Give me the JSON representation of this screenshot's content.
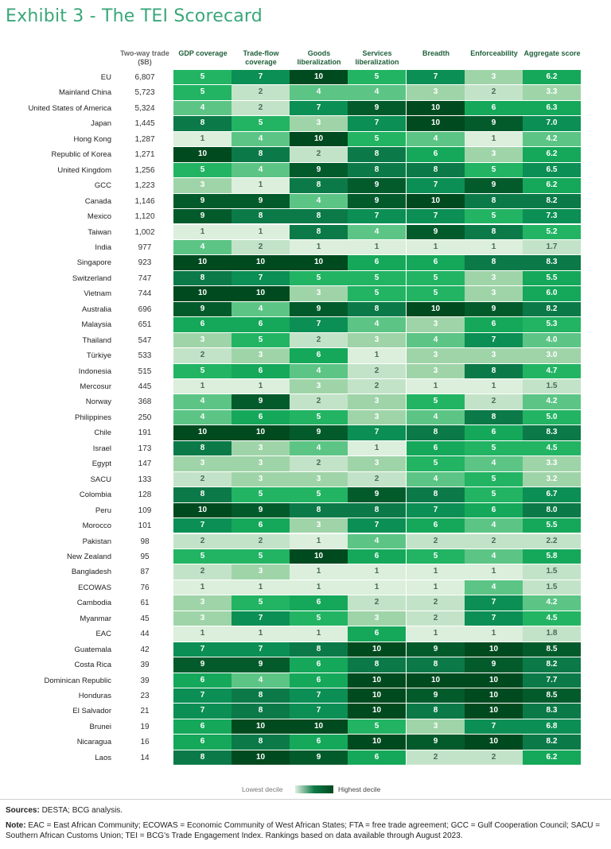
{
  "title": "Exhibit 3 - The TEI Scorecard",
  "columns": {
    "trade": "Two-way trade ($B)",
    "headers": [
      "GDP coverage",
      "Trade-flow coverage",
      "Goods liberalization",
      "Services liberalization",
      "Breadth",
      "Enforceability",
      "Aggregate score"
    ]
  },
  "legend": {
    "low": "Lowest decile",
    "high": "Highest decile"
  },
  "footer": {
    "sources_label": "Sources:",
    "sources_text": "DESTA; BCG analysis.",
    "note_label": "Note:",
    "note_text": "EAC = East African Community; ECOWAS = Economic Community of West African States; FTA = free trade agreement; GCC = Gulf Cooperation Council; SACU = Southern African Customs Union; TEI = BCG's Trade Engagement Index. Rankings based on data available through August 2023."
  },
  "chart_data": {
    "type": "heatmap",
    "title": "Exhibit 3 - The TEI Scorecard",
    "columns": [
      "GDP coverage",
      "Trade-flow coverage",
      "Goods liberalization",
      "Services liberalization",
      "Breadth",
      "Enforceability",
      "Aggregate score"
    ],
    "colors": [
      "#dbefdc",
      "#c3e3c8",
      "#9fd4a8",
      "#5cc585",
      "#22b463",
      "#15a85a",
      "#0b8f54",
      "#0b7a48",
      "#035b2c",
      "#004a1f"
    ],
    "rows": [
      {
        "country": "EU",
        "trade": "6,807",
        "scores": [
          5,
          7,
          10,
          5,
          7,
          3
        ],
        "aggregate": 6.2
      },
      {
        "country": "Mainland China",
        "trade": "5,723",
        "scores": [
          5,
          2,
          4,
          4,
          3,
          2
        ],
        "aggregate": 3.3
      },
      {
        "country": "United States of America",
        "trade": "5,324",
        "scores": [
          4,
          2,
          7,
          9,
          10,
          6
        ],
        "aggregate": 6.3
      },
      {
        "country": "Japan",
        "trade": "1,445",
        "scores": [
          8,
          5,
          3,
          7,
          10,
          9
        ],
        "aggregate": 7.0
      },
      {
        "country": "Hong Kong",
        "trade": "1,287",
        "scores": [
          1,
          4,
          10,
          5,
          4,
          1
        ],
        "aggregate": 4.2
      },
      {
        "country": "Republic of Korea",
        "trade": "1,271",
        "scores": [
          10,
          8,
          2,
          8,
          6,
          3
        ],
        "aggregate": 6.2
      },
      {
        "country": "United Kingdom",
        "trade": "1,256",
        "scores": [
          5,
          4,
          9,
          8,
          8,
          5
        ],
        "aggregate": 6.5
      },
      {
        "country": "GCC",
        "trade": "1,223",
        "scores": [
          3,
          1,
          8,
          9,
          7,
          9
        ],
        "aggregate": 6.2
      },
      {
        "country": "Canada",
        "trade": "1,146",
        "scores": [
          9,
          9,
          4,
          9,
          10,
          8
        ],
        "aggregate": 8.2
      },
      {
        "country": "Mexico",
        "trade": "1,120",
        "scores": [
          9,
          8,
          8,
          7,
          7,
          5
        ],
        "aggregate": 7.3
      },
      {
        "country": "Taiwan",
        "trade": "1,002",
        "scores": [
          1,
          1,
          8,
          4,
          9,
          8
        ],
        "aggregate": 5.2
      },
      {
        "country": "India",
        "trade": "977",
        "scores": [
          4,
          2,
          1,
          1,
          1,
          1
        ],
        "aggregate": 1.7
      },
      {
        "country": "Singapore",
        "trade": "923",
        "scores": [
          10,
          10,
          10,
          6,
          6,
          8
        ],
        "aggregate": 8.3
      },
      {
        "country": "Switzerland",
        "trade": "747",
        "scores": [
          8,
          7,
          5,
          5,
          5,
          3
        ],
        "aggregate": 5.5
      },
      {
        "country": "Vietnam",
        "trade": "744",
        "scores": [
          10,
          10,
          3,
          5,
          5,
          3
        ],
        "aggregate": 6.0
      },
      {
        "country": "Australia",
        "trade": "696",
        "scores": [
          9,
          4,
          9,
          8,
          10,
          9
        ],
        "aggregate": 8.2
      },
      {
        "country": "Malaysia",
        "trade": "651",
        "scores": [
          6,
          6,
          7,
          4,
          3,
          6
        ],
        "aggregate": 5.3
      },
      {
        "country": "Thailand",
        "trade": "547",
        "scores": [
          3,
          5,
          2,
          3,
          4,
          7
        ],
        "aggregate": 4.0
      },
      {
        "country": "Türkiye",
        "trade": "533",
        "scores": [
          2,
          3,
          6,
          1,
          3,
          3
        ],
        "aggregate": 3.0
      },
      {
        "country": "Indonesia",
        "trade": "515",
        "scores": [
          5,
          6,
          4,
          2,
          3,
          8
        ],
        "aggregate": 4.7
      },
      {
        "country": "Mercosur",
        "trade": "445",
        "scores": [
          1,
          1,
          3,
          2,
          1,
          1
        ],
        "aggregate": 1.5
      },
      {
        "country": "Norway",
        "trade": "368",
        "scores": [
          4,
          9,
          2,
          3,
          5,
          2
        ],
        "aggregate": 4.2
      },
      {
        "country": "Philippines",
        "trade": "250",
        "scores": [
          4,
          6,
          5,
          3,
          4,
          8
        ],
        "aggregate": 5.0
      },
      {
        "country": "Chile",
        "trade": "191",
        "scores": [
          10,
          10,
          9,
          7,
          8,
          6
        ],
        "aggregate": 8.3
      },
      {
        "country": "Israel",
        "trade": "173",
        "scores": [
          8,
          3,
          4,
          1,
          6,
          5
        ],
        "aggregate": 4.5
      },
      {
        "country": "Egypt",
        "trade": "147",
        "scores": [
          3,
          3,
          2,
          3,
          5,
          4
        ],
        "aggregate": 3.3
      },
      {
        "country": "SACU",
        "trade": "133",
        "scores": [
          2,
          3,
          3,
          2,
          4,
          5
        ],
        "aggregate": 3.2
      },
      {
        "country": "Colombia",
        "trade": "128",
        "scores": [
          8,
          5,
          5,
          9,
          8,
          5
        ],
        "aggregate": 6.7
      },
      {
        "country": "Peru",
        "trade": "109",
        "scores": [
          10,
          9,
          8,
          8,
          7,
          6
        ],
        "aggregate": 8.0
      },
      {
        "country": "Morocco",
        "trade": "101",
        "scores": [
          7,
          6,
          3,
          7,
          6,
          4
        ],
        "aggregate": 5.5
      },
      {
        "country": "Pakistan",
        "trade": "98",
        "scores": [
          2,
          2,
          1,
          4,
          2,
          2
        ],
        "aggregate": 2.2
      },
      {
        "country": "New Zealand",
        "trade": "95",
        "scores": [
          5,
          5,
          10,
          6,
          5,
          4
        ],
        "aggregate": 5.8
      },
      {
        "country": "Bangladesh",
        "trade": "87",
        "scores": [
          2,
          3,
          1,
          1,
          1,
          1
        ],
        "aggregate": 1.5
      },
      {
        "country": "ECOWAS",
        "trade": "76",
        "scores": [
          1,
          1,
          1,
          1,
          1,
          4
        ],
        "aggregate": 1.5
      },
      {
        "country": "Cambodia",
        "trade": "61",
        "scores": [
          3,
          5,
          6,
          2,
          2,
          7
        ],
        "aggregate": 4.2
      },
      {
        "country": "Myanmar",
        "trade": "45",
        "scores": [
          3,
          7,
          5,
          3,
          2,
          7
        ],
        "aggregate": 4.5
      },
      {
        "country": "EAC",
        "trade": "44",
        "scores": [
          1,
          1,
          1,
          6,
          1,
          1
        ],
        "aggregate": 1.8
      },
      {
        "country": "Guatemala",
        "trade": "42",
        "scores": [
          7,
          7,
          8,
          10,
          9,
          10
        ],
        "aggregate": 8.5
      },
      {
        "country": "Costa Rica",
        "trade": "39",
        "scores": [
          9,
          9,
          6,
          8,
          8,
          9
        ],
        "aggregate": 8.2
      },
      {
        "country": "Dominican Republic",
        "trade": "39",
        "scores": [
          6,
          4,
          6,
          10,
          10,
          10
        ],
        "aggregate": 7.7
      },
      {
        "country": "Honduras",
        "trade": "23",
        "scores": [
          7,
          8,
          7,
          10,
          9,
          10
        ],
        "aggregate": 8.5
      },
      {
        "country": "El Salvador",
        "trade": "21",
        "scores": [
          7,
          8,
          7,
          10,
          8,
          10
        ],
        "aggregate": 8.3
      },
      {
        "country": "Brunei",
        "trade": "19",
        "scores": [
          6,
          10,
          10,
          5,
          3,
          7
        ],
        "aggregate": 6.8
      },
      {
        "country": "Nicaragua",
        "trade": "16",
        "scores": [
          6,
          8,
          6,
          10,
          9,
          10
        ],
        "aggregate": 8.2
      },
      {
        "country": "Laos",
        "trade": "14",
        "scores": [
          8,
          10,
          9,
          6,
          2,
          2
        ],
        "aggregate": 6.2
      }
    ]
  }
}
